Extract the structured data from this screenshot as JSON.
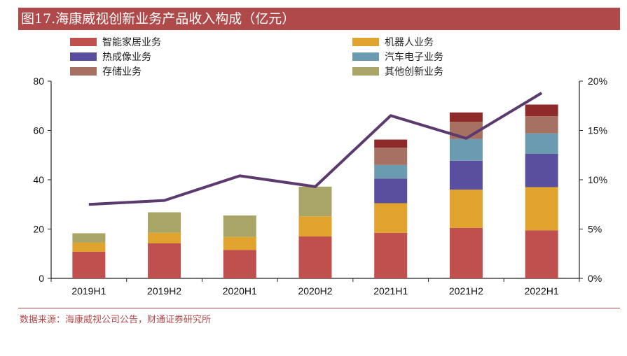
{
  "title": "图17.海康威视创新业务产品收入构成（亿元）",
  "source": "数据来源：海康威视公司公告，财通证券研究所",
  "colors": {
    "title_bg": "#b04a4a",
    "line": "#5b3a6e",
    "axis": "#222222"
  },
  "chart_data": {
    "type": "bar",
    "stacked": true,
    "categories": [
      "2019H1",
      "2019H2",
      "2020H1",
      "2020H2",
      "2021H1",
      "2021H2",
      "2022H1"
    ],
    "series": [
      {
        "name": "智能家居业务",
        "color": "#c0504d",
        "values": [
          10.8,
          14.2,
          11.5,
          17.0,
          18.5,
          20.5,
          19.5
        ]
      },
      {
        "name": "机器人业务",
        "color": "#e0a32e",
        "values": [
          3.7,
          4.3,
          5.3,
          8.2,
          12.0,
          15.5,
          17.5
        ]
      },
      {
        "name": "热成像业务",
        "color": "#5a4f9e",
        "values": [
          0,
          0,
          0,
          0,
          10.0,
          11.7,
          13.5
        ]
      },
      {
        "name": "汽车电子业务",
        "color": "#6b9bb0",
        "values": [
          0,
          0,
          0,
          0,
          5.5,
          8.8,
          8.3
        ]
      },
      {
        "name": "存储业务",
        "color": "#a67062",
        "values": [
          0,
          0,
          0,
          0,
          7.0,
          7.0,
          7.0
        ]
      },
      {
        "name": "其他创新业务",
        "color": "#a8a567",
        "values": [
          3.8,
          8.3,
          8.7,
          12.0,
          0,
          0,
          0
        ]
      },
      {
        "name": "",
        "color": "#8e2a2a",
        "values": [
          0,
          0,
          0,
          0,
          3.3,
          3.8,
          4.7
        ]
      }
    ],
    "line_series": {
      "name": "",
      "axis": "right",
      "values": [
        7.5,
        7.9,
        10.4,
        9.3,
        16.5,
        14.2,
        18.8
      ]
    },
    "ylim": [
      0,
      80
    ],
    "yticks": [
      "0",
      "20",
      "40",
      "60",
      "80"
    ],
    "y2lim": [
      0,
      20
    ],
    "y2ticks": [
      "0%",
      "5%",
      "10%",
      "15%",
      "20%"
    ],
    "legend_position": "top"
  }
}
